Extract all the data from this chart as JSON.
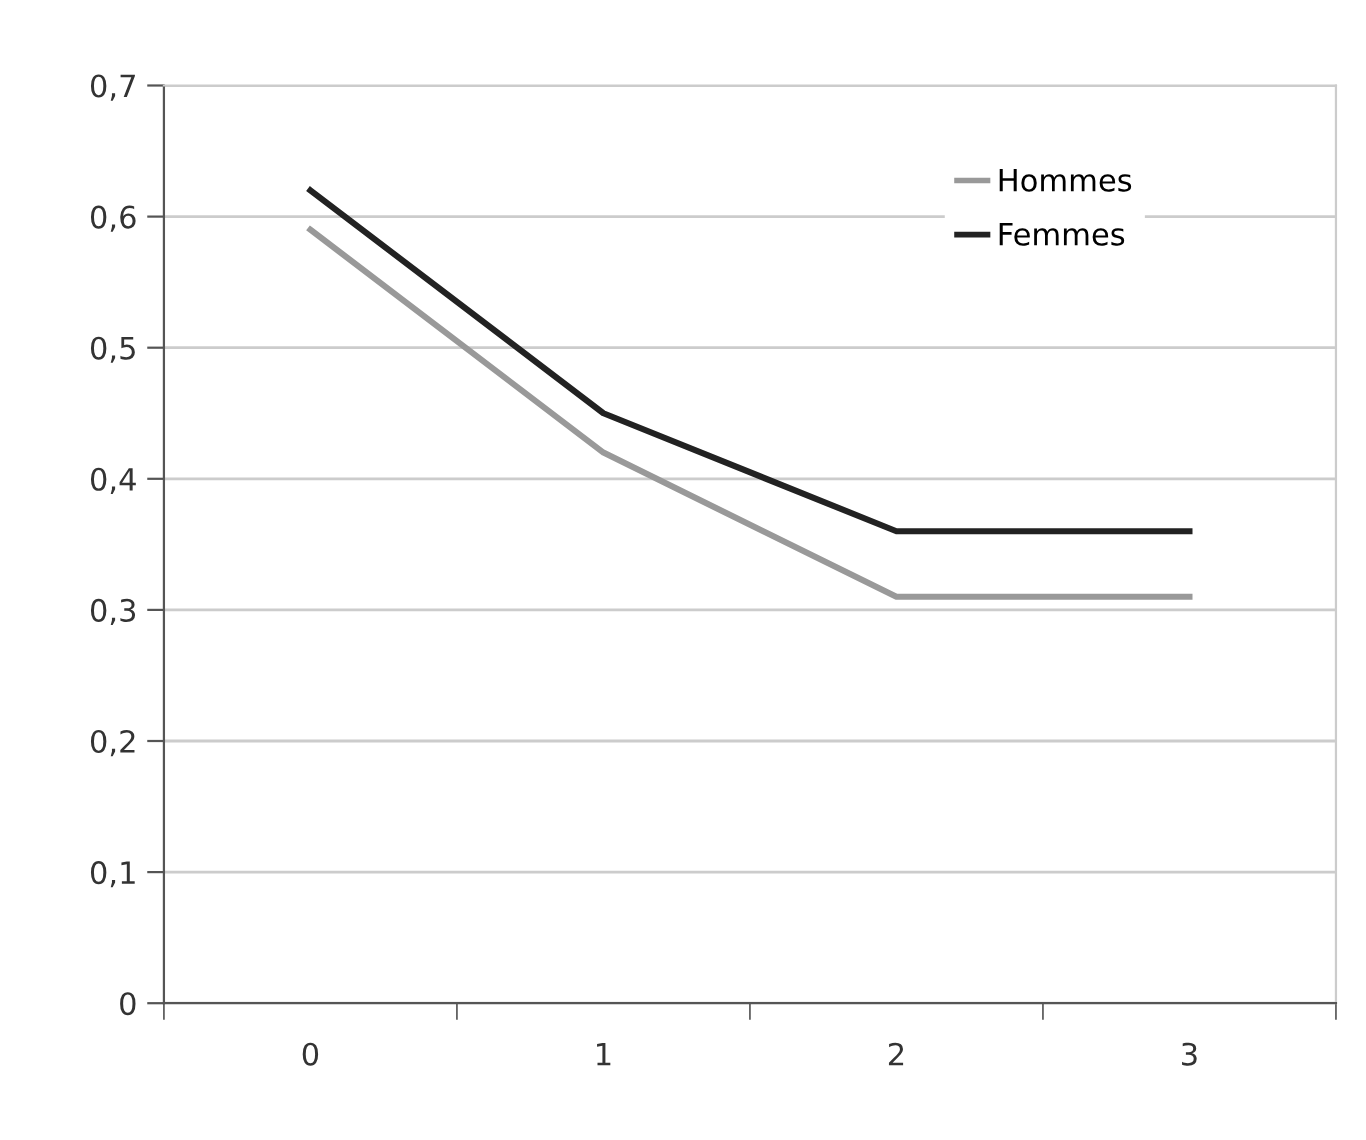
{
  "chart_data": {
    "type": "line",
    "categories": [
      "0",
      "1",
      "2",
      "3"
    ],
    "series": [
      {
        "name": "Hommes",
        "color": "#999999",
        "values": [
          0.59,
          0.42,
          0.31,
          0.31
        ]
      },
      {
        "name": "Femmes",
        "color": "#222222",
        "values": [
          0.62,
          0.45,
          0.36,
          0.36
        ]
      }
    ],
    "ylim": [
      0,
      0.7
    ],
    "yticks": [
      {
        "value": 0,
        "label": "0"
      },
      {
        "value": 0.1,
        "label": "0,1"
      },
      {
        "value": 0.2,
        "label": "0,2"
      },
      {
        "value": 0.3,
        "label": "0,3"
      },
      {
        "value": 0.4,
        "label": "0,4"
      },
      {
        "value": 0.5,
        "label": "0,5"
      },
      {
        "value": 0.6,
        "label": "0,6"
      },
      {
        "value": 0.7,
        "label": "0,7"
      }
    ],
    "grid": "y",
    "legend": "top right",
    "marker": "none",
    "line_style": "solid"
  }
}
